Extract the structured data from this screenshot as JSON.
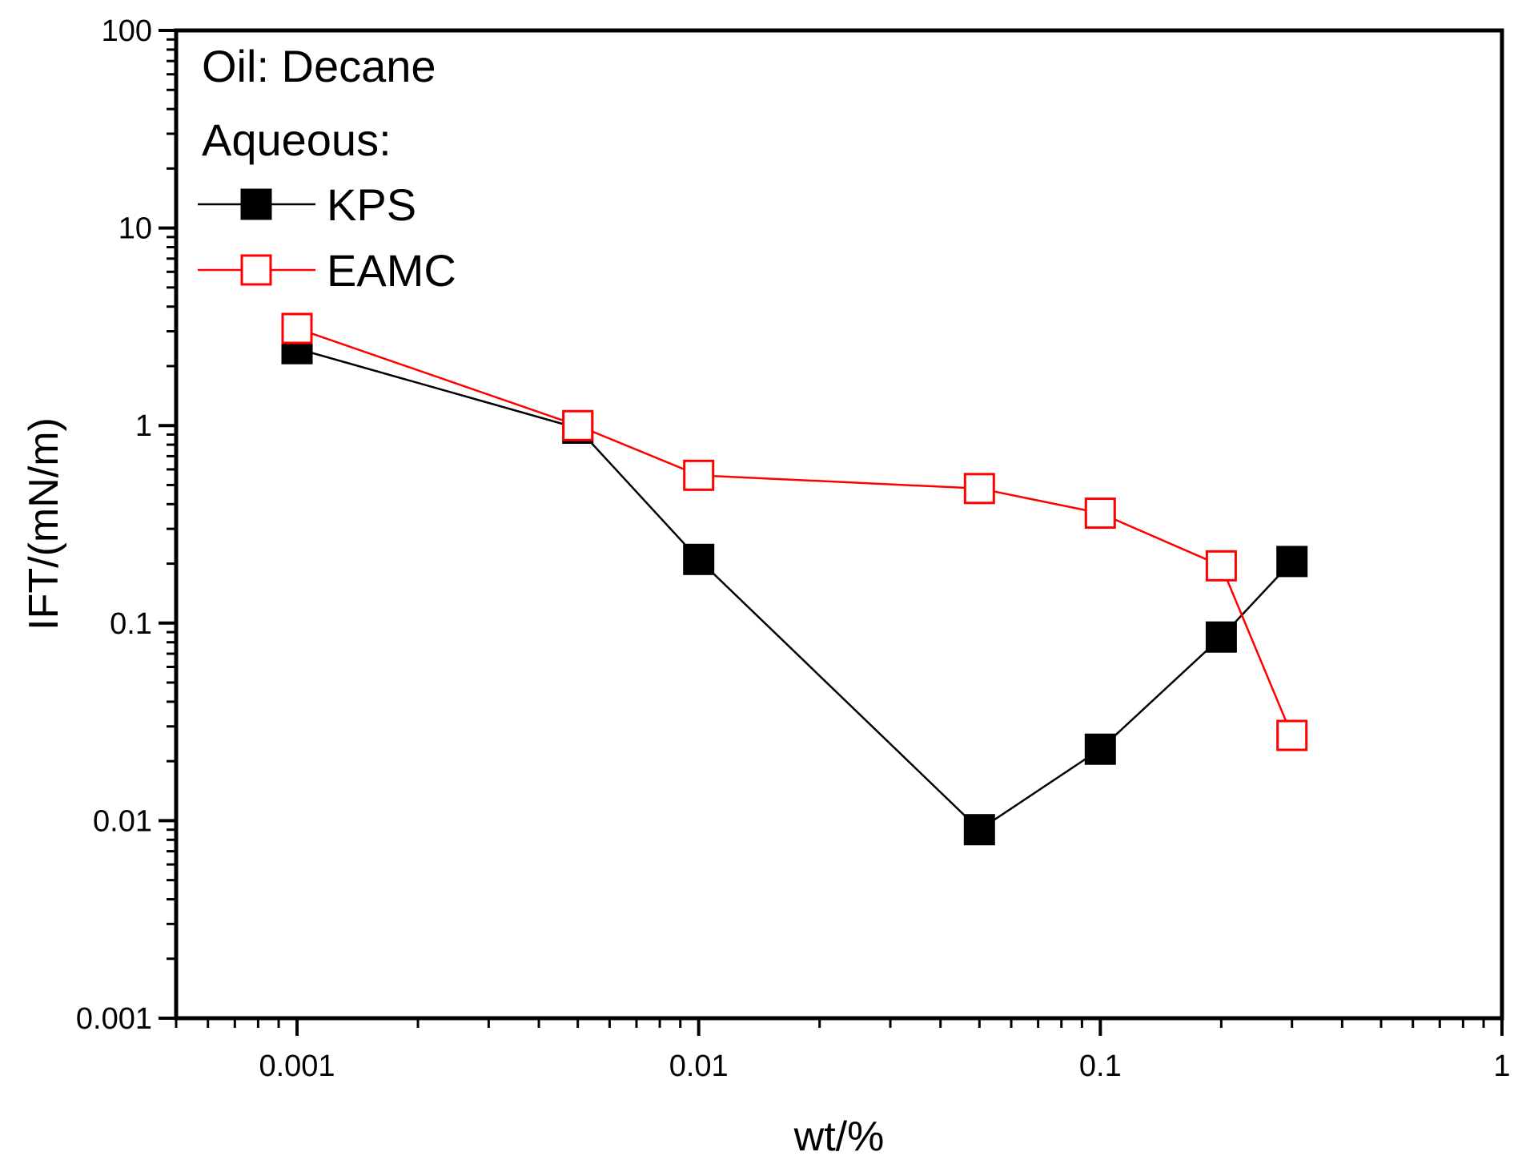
{
  "chart_data": {
    "type": "line",
    "title": "",
    "xlabel": "wt/%",
    "ylabel": "IFT/(mN/m)",
    "xscale": "log",
    "yscale": "log",
    "xlim": [
      0.0005,
      1
    ],
    "ylim": [
      0.001,
      100
    ],
    "x_tick_values": [
      0.001,
      0.01,
      0.1,
      1
    ],
    "x_tick_labels": [
      "0.001",
      "0.01",
      "0.1",
      "1"
    ],
    "y_tick_values": [
      0.001,
      0.01,
      0.1,
      1,
      10,
      100
    ],
    "y_tick_labels": [
      "0.001",
      "0.01",
      "0.1",
      "1",
      "10",
      "100"
    ],
    "legend_placement": "top-left",
    "legend_header": [
      "Oil: Decane",
      "Aqueous:"
    ],
    "series": [
      {
        "name": "KPS",
        "color": "#000000",
        "marker": "filled-square",
        "x": [
          0.001,
          0.005,
          0.01,
          0.05,
          0.1,
          0.2,
          0.3
        ],
        "y": [
          2.45,
          0.97,
          0.21,
          0.009,
          0.023,
          0.085,
          0.205
        ]
      },
      {
        "name": "EAMC",
        "color": "#ff0000",
        "marker": "open-square",
        "x": [
          0.001,
          0.005,
          0.01,
          0.05,
          0.1,
          0.2,
          0.3
        ],
        "y": [
          3.1,
          1.0,
          0.56,
          0.48,
          0.36,
          0.195,
          0.027
        ]
      }
    ]
  }
}
